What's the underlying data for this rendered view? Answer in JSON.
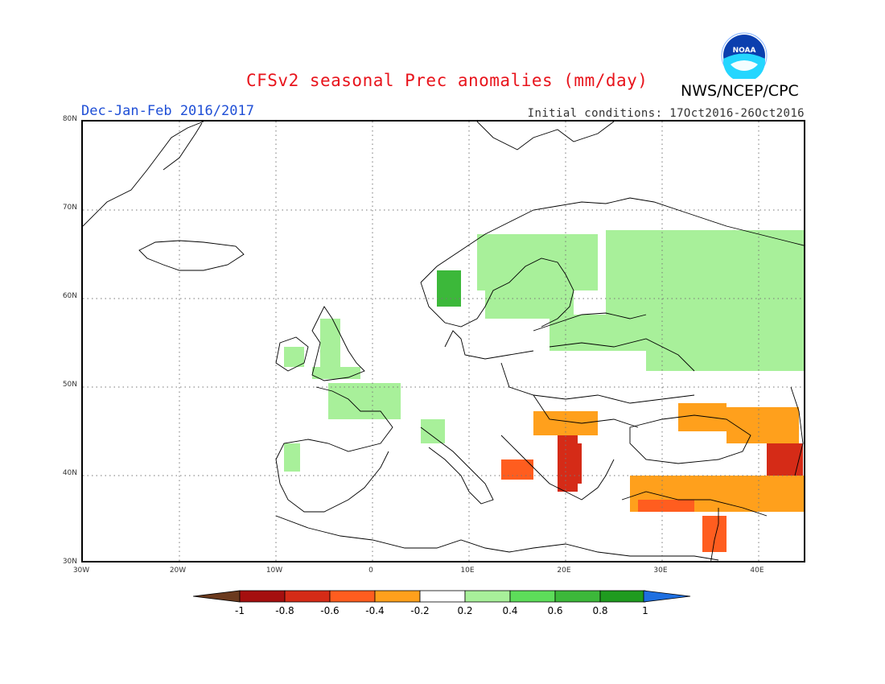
{
  "header": {
    "title": "CFSv2 seasonal Prec anomalies (mm/day)",
    "season": "Dec-Jan-Feb 2016/2017",
    "initial_conditions": "Initial conditions: 17Oct2016-26Oct2016",
    "organization": "NWS/NCEP/CPC",
    "logo_text": "NOAA"
  },
  "map": {
    "lat_labels": [
      "80N",
      "70N",
      "60N",
      "50N",
      "40N",
      "30N"
    ],
    "lon_labels": [
      "30W",
      "20W",
      "10W",
      "0",
      "10E",
      "20E",
      "30E",
      "40E"
    ],
    "lon_range": [
      -30,
      45
    ],
    "lat_range": [
      30,
      80
    ]
  },
  "legend": {
    "labels": [
      "-1",
      "-0.8",
      "-0.6",
      "-0.4",
      "-0.2",
      "0.2",
      "0.4",
      "0.6",
      "0.8",
      "1"
    ],
    "colors": {
      "below_min": "#6b3a1e",
      "bins": [
        "#a50f0f",
        "#d52b17",
        "#ff5d1f",
        "#ffa01c",
        "#ffffff",
        "#a8f09a",
        "#5ddd5a",
        "#3cb83a",
        "#1f9b1f"
      ],
      "above_max": "#1e6fe0"
    }
  },
  "anomaly_regions": [
    {
      "region": "Norway west coast",
      "value": 0.7
    },
    {
      "region": "Sweden / Finland",
      "value": 0.3
    },
    {
      "region": "Western Russia",
      "value": 0.3
    },
    {
      "region": "British Isles",
      "value": 0.3
    },
    {
      "region": "France",
      "value": 0.3
    },
    {
      "region": "Greece / Albania",
      "value": -0.8
    },
    {
      "region": "Turkey",
      "value": -0.4
    },
    {
      "region": "Caucasus",
      "value": -0.8
    },
    {
      "region": "Southern Italy",
      "value": -0.6
    },
    {
      "region": "Levant",
      "value": -0.6
    }
  ]
}
